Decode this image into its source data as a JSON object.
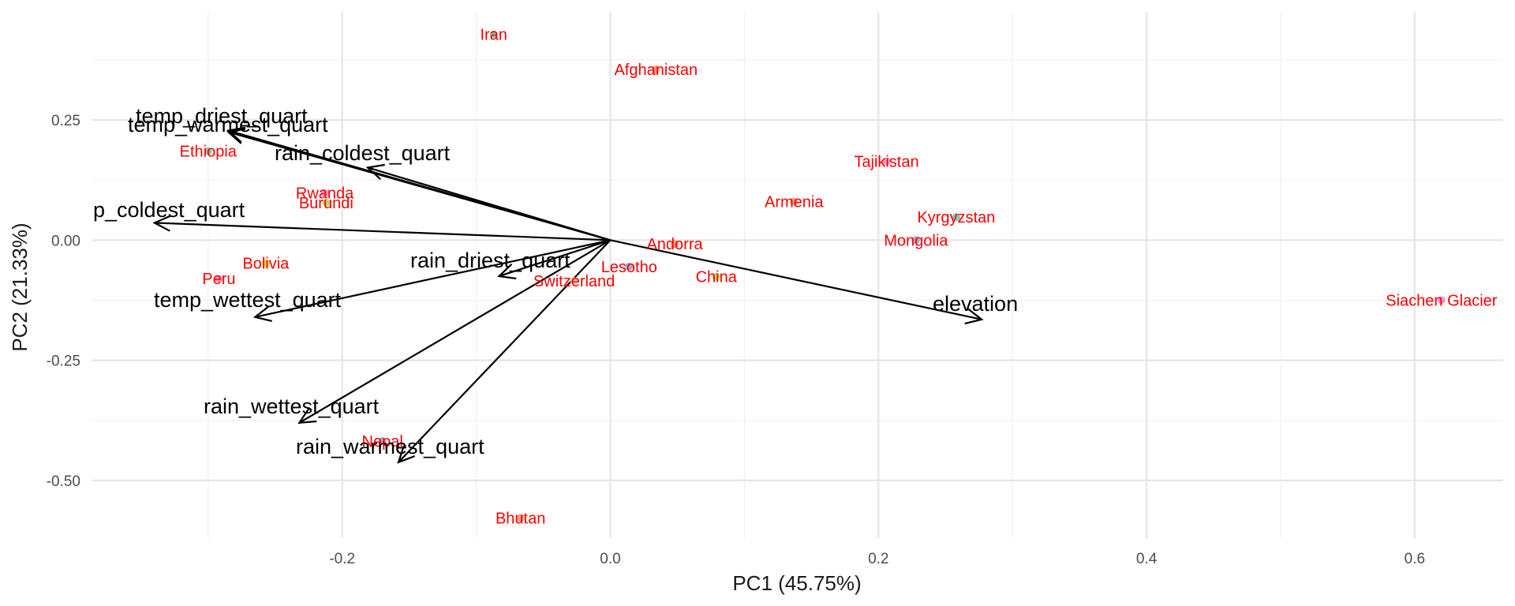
{
  "chart_data": {
    "type": "scatter",
    "subtype": "pca-biplot",
    "xlabel": "PC1 (45.75%)",
    "ylabel": "PC2 (21.33%)",
    "xlim": [
      -0.387,
      0.666
    ],
    "ylim": [
      -0.62,
      0.475
    ],
    "x_major_ticks": [
      -0.2,
      0.0,
      0.2,
      0.4,
      0.6
    ],
    "x_minor_ticks": [
      -0.3,
      -0.1,
      0.1,
      0.3,
      0.5
    ],
    "y_major_ticks": [
      -0.5,
      -0.25,
      0.0,
      0.25
    ],
    "y_minor_ticks": [
      -0.375,
      -0.125,
      0.125,
      0.375
    ],
    "x_tick_labels": [
      "-0.2",
      "0.0",
      "0.2",
      "0.4",
      "0.6"
    ],
    "y_tick_labels": [
      "-0.50",
      "-0.25",
      "0.00",
      "0.25"
    ],
    "grid": true,
    "legend": "none",
    "label_color": "#ff0000",
    "arrow_color": "#000000",
    "points": [
      {
        "label": "Iran",
        "x": -0.087,
        "y": 0.428,
        "color": "#66c2a5"
      },
      {
        "label": "Afghanistan",
        "x": 0.034,
        "y": 0.355,
        "color": "#fc8d62"
      },
      {
        "label": "Tajikistan",
        "x": 0.206,
        "y": 0.164,
        "color": "#e78ac3"
      },
      {
        "label": "Ethiopia",
        "x": -0.3,
        "y": 0.185,
        "color": "#66c2a5"
      },
      {
        "label": "Rwanda",
        "x": -0.213,
        "y": 0.098,
        "color": "#e78ac3"
      },
      {
        "label": "Burundi",
        "x": -0.212,
        "y": 0.078,
        "color": "#a6d854"
      },
      {
        "label": "Armenia",
        "x": 0.137,
        "y": 0.08,
        "color": "#fc8d62"
      },
      {
        "label": "Kyrgyzstan",
        "x": 0.258,
        "y": 0.048,
        "color": "#66c2a5"
      },
      {
        "label": "Mongolia",
        "x": 0.228,
        "y": 0.0,
        "color": "#8da0cb"
      },
      {
        "label": "Andorra",
        "x": 0.048,
        "y": -0.008,
        "color": "#fc8d62"
      },
      {
        "label": "Bolivia",
        "x": -0.257,
        "y": -0.048,
        "color": "#ffd92f"
      },
      {
        "label": "Lesotho",
        "x": 0.014,
        "y": -0.055,
        "color": "#8da0cb"
      },
      {
        "label": "China",
        "x": 0.079,
        "y": -0.076,
        "color": "#a6d854"
      },
      {
        "label": "Peru",
        "x": -0.292,
        "y": -0.08,
        "color": "#e78ac3"
      },
      {
        "label": "Switzerland",
        "x": -0.027,
        "y": -0.085,
        "color": "#e5c494"
      },
      {
        "label": "Siachen Glacier",
        "x": 0.62,
        "y": -0.125,
        "color": "#e78ac3"
      },
      {
        "label": "Nepal",
        "x": -0.17,
        "y": -0.418,
        "color": "#8da0cb"
      },
      {
        "label": "Bhutan",
        "x": -0.067,
        "y": -0.578,
        "color": "#fc8d62"
      }
    ],
    "loadings": [
      {
        "label": "temp_driest_quart",
        "x": -0.285,
        "y": 0.228
      },
      {
        "label": "temp_warmest_quart",
        "x": -0.285,
        "y": 0.225
      },
      {
        "label": "rain_coldest_quart",
        "x": -0.181,
        "y": 0.151
      },
      {
        "label": "p_coldest_quart",
        "x": -0.34,
        "y": 0.036
      },
      {
        "label": "rain_driest_quart",
        "x": -0.083,
        "y": -0.075
      },
      {
        "label": "temp_wettest_quart",
        "x": -0.265,
        "y": -0.16
      },
      {
        "label": "rain_wettest_quart",
        "x": -0.232,
        "y": -0.38
      },
      {
        "label": "rain_warmest_quart",
        "x": -0.158,
        "y": -0.462
      },
      {
        "label": "elevation",
        "x": 0.277,
        "y": -0.165
      }
    ]
  }
}
